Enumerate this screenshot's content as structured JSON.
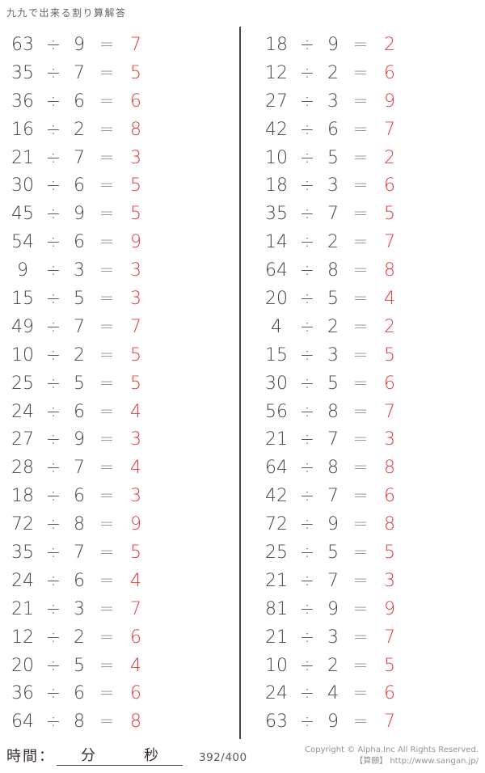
{
  "title": "九九で出来る割り算解答",
  "operators": {
    "divide": "÷",
    "equals": "="
  },
  "colors": {
    "problem_text": "#4b4240",
    "answer_red": "#e5383e",
    "equals_gray": "#928a88",
    "divider": "#4f4442"
  },
  "problems": {
    "left": [
      {
        "dividend": 63,
        "divisor": 9,
        "answer": 7
      },
      {
        "dividend": 35,
        "divisor": 7,
        "answer": 5
      },
      {
        "dividend": 36,
        "divisor": 6,
        "answer": 6
      },
      {
        "dividend": 16,
        "divisor": 2,
        "answer": 8
      },
      {
        "dividend": 21,
        "divisor": 7,
        "answer": 3
      },
      {
        "dividend": 30,
        "divisor": 6,
        "answer": 5
      },
      {
        "dividend": 45,
        "divisor": 9,
        "answer": 5
      },
      {
        "dividend": 54,
        "divisor": 6,
        "answer": 9
      },
      {
        "dividend": 9,
        "divisor": 3,
        "answer": 3
      },
      {
        "dividend": 15,
        "divisor": 5,
        "answer": 3
      },
      {
        "dividend": 49,
        "divisor": 7,
        "answer": 7
      },
      {
        "dividend": 10,
        "divisor": 2,
        "answer": 5
      },
      {
        "dividend": 25,
        "divisor": 5,
        "answer": 5
      },
      {
        "dividend": 24,
        "divisor": 6,
        "answer": 4
      },
      {
        "dividend": 27,
        "divisor": 9,
        "answer": 3
      },
      {
        "dividend": 28,
        "divisor": 7,
        "answer": 4
      },
      {
        "dividend": 18,
        "divisor": 6,
        "answer": 3
      },
      {
        "dividend": 72,
        "divisor": 8,
        "answer": 9
      },
      {
        "dividend": 35,
        "divisor": 7,
        "answer": 5
      },
      {
        "dividend": 24,
        "divisor": 6,
        "answer": 4
      },
      {
        "dividend": 21,
        "divisor": 3,
        "answer": 7
      },
      {
        "dividend": 12,
        "divisor": 2,
        "answer": 6
      },
      {
        "dividend": 20,
        "divisor": 5,
        "answer": 4
      },
      {
        "dividend": 36,
        "divisor": 6,
        "answer": 6
      },
      {
        "dividend": 64,
        "divisor": 8,
        "answer": 8
      }
    ],
    "right": [
      {
        "dividend": 18,
        "divisor": 9,
        "answer": 2
      },
      {
        "dividend": 12,
        "divisor": 2,
        "answer": 6
      },
      {
        "dividend": 27,
        "divisor": 3,
        "answer": 9
      },
      {
        "dividend": 42,
        "divisor": 6,
        "answer": 7
      },
      {
        "dividend": 10,
        "divisor": 5,
        "answer": 2
      },
      {
        "dividend": 18,
        "divisor": 3,
        "answer": 6
      },
      {
        "dividend": 35,
        "divisor": 7,
        "answer": 5
      },
      {
        "dividend": 14,
        "divisor": 2,
        "answer": 7
      },
      {
        "dividend": 64,
        "divisor": 8,
        "answer": 8
      },
      {
        "dividend": 20,
        "divisor": 5,
        "answer": 4
      },
      {
        "dividend": 4,
        "divisor": 2,
        "answer": 2
      },
      {
        "dividend": 15,
        "divisor": 3,
        "answer": 5
      },
      {
        "dividend": 30,
        "divisor": 5,
        "answer": 6
      },
      {
        "dividend": 56,
        "divisor": 8,
        "answer": 7
      },
      {
        "dividend": 21,
        "divisor": 7,
        "answer": 3
      },
      {
        "dividend": 64,
        "divisor": 8,
        "answer": 8
      },
      {
        "dividend": 42,
        "divisor": 7,
        "answer": 6
      },
      {
        "dividend": 72,
        "divisor": 9,
        "answer": 8
      },
      {
        "dividend": 25,
        "divisor": 5,
        "answer": 5
      },
      {
        "dividend": 21,
        "divisor": 7,
        "answer": 3
      },
      {
        "dividend": 81,
        "divisor": 9,
        "answer": 9
      },
      {
        "dividend": 21,
        "divisor": 3,
        "answer": 7
      },
      {
        "dividend": 10,
        "divisor": 2,
        "answer": 5
      },
      {
        "dividend": 24,
        "divisor": 4,
        "answer": 6
      },
      {
        "dividend": 63,
        "divisor": 9,
        "answer": 7
      }
    ]
  },
  "footer": {
    "time_label": "時間：",
    "minutes_label": "分",
    "seconds_label": "秒",
    "score": "392/400",
    "copyright_line1": "Copyright © Alpha.Inc All Rights Reserved.",
    "copyright_line2": "【算願】 http://www.sangan.jp/"
  }
}
